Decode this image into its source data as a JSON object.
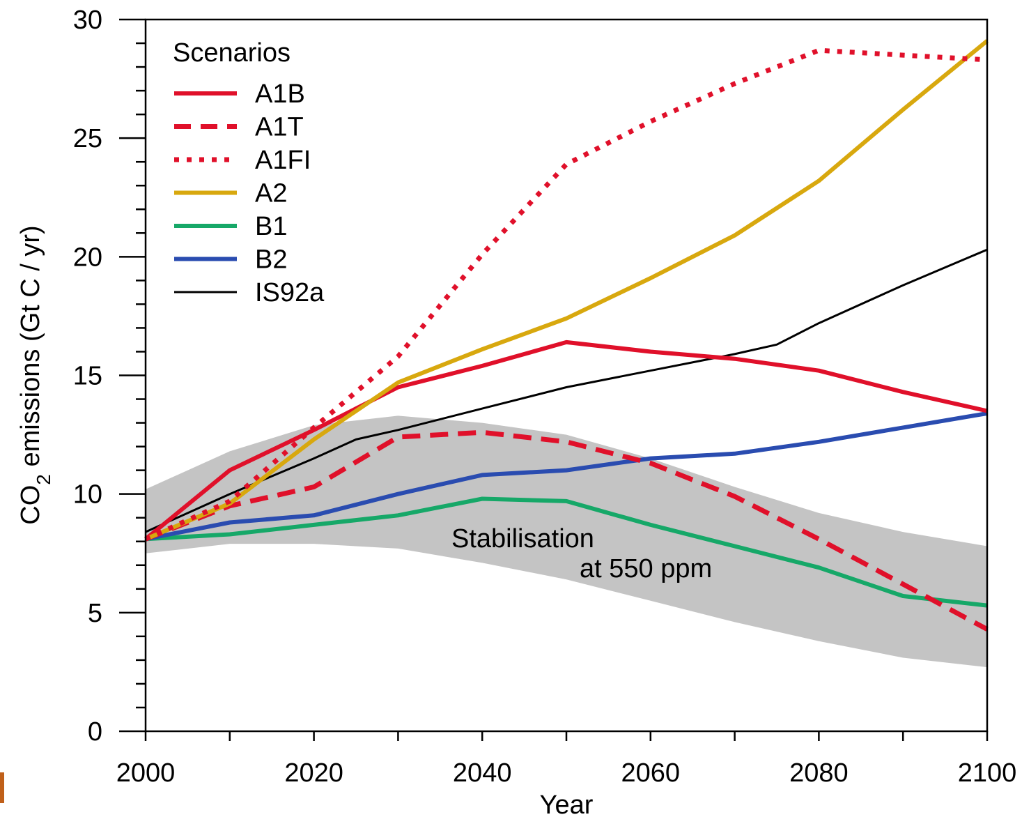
{
  "chart_data": {
    "type": "line",
    "xlabel": "Year",
    "ylabel": "CO₂ emissions (Gt C / yr)",
    "xlim": [
      2000,
      2100
    ],
    "ylim": [
      0,
      30
    ],
    "x_ticks": [
      2000,
      2020,
      2040,
      2060,
      2080,
      2100
    ],
    "y_ticks": [
      0,
      5,
      10,
      15,
      20,
      25,
      30
    ],
    "grid": false,
    "legend": {
      "title": "Scenarios",
      "placement": "top-left"
    },
    "band": {
      "label_line1": "Stabilisation",
      "label_line2": "at 550 ppm",
      "color": "#c4c4c4",
      "x": [
        2000,
        2010,
        2020,
        2030,
        2040,
        2050,
        2060,
        2070,
        2080,
        2090,
        2100
      ],
      "upper": [
        10.2,
        11.8,
        12.9,
        13.3,
        13.0,
        12.5,
        11.5,
        10.3,
        9.2,
        8.4,
        7.8
      ],
      "lower": [
        7.5,
        7.9,
        7.9,
        7.7,
        7.1,
        6.4,
        5.5,
        4.6,
        3.8,
        3.1,
        2.7
      ]
    },
    "series": [
      {
        "name": "A1B",
        "color": "#e0102a",
        "dash": "solid",
        "width": 6,
        "x": [
          2000,
          2010,
          2020,
          2025,
          2030,
          2040,
          2050,
          2060,
          2070,
          2080,
          2090,
          2100
        ],
        "y": [
          8.1,
          11.0,
          12.7,
          13.6,
          14.5,
          15.4,
          16.4,
          16.0,
          15.7,
          15.2,
          14.3,
          13.5
        ]
      },
      {
        "name": "A1T",
        "color": "#e0102a",
        "dash": "dashed",
        "width": 7,
        "x": [
          2000,
          2010,
          2020,
          2030,
          2040,
          2050,
          2060,
          2070,
          2080,
          2090,
          2100
        ],
        "y": [
          8.1,
          9.5,
          10.3,
          12.4,
          12.6,
          12.2,
          11.3,
          9.9,
          8.1,
          6.2,
          4.3
        ]
      },
      {
        "name": "A1FI",
        "color": "#e0102a",
        "dash": "dotted",
        "width": 7,
        "x": [
          2000,
          2010,
          2020,
          2030,
          2040,
          2050,
          2060,
          2070,
          2080,
          2090,
          2100
        ],
        "y": [
          8.1,
          9.7,
          12.8,
          15.8,
          20.1,
          23.9,
          25.7,
          27.3,
          28.7,
          28.5,
          28.3
        ]
      },
      {
        "name": "A2",
        "color": "#d8a80e",
        "dash": "solid",
        "width": 6,
        "x": [
          2000,
          2010,
          2020,
          2030,
          2040,
          2050,
          2060,
          2070,
          2080,
          2090,
          2100
        ],
        "y": [
          8.1,
          9.6,
          12.3,
          14.7,
          16.1,
          17.4,
          19.1,
          20.9,
          23.2,
          26.2,
          29.1
        ]
      },
      {
        "name": "B1",
        "color": "#16a868",
        "dash": "solid",
        "width": 6,
        "x": [
          2000,
          2010,
          2020,
          2030,
          2040,
          2050,
          2060,
          2070,
          2080,
          2090,
          2100
        ],
        "y": [
          8.1,
          8.3,
          8.7,
          9.1,
          9.8,
          9.7,
          8.7,
          7.8,
          6.9,
          5.7,
          5.3
        ]
      },
      {
        "name": "B2",
        "color": "#2a4cb0",
        "dash": "solid",
        "width": 6,
        "x": [
          2000,
          2010,
          2020,
          2030,
          2040,
          2050,
          2060,
          2070,
          2080,
          2090,
          2100
        ],
        "y": [
          8.1,
          8.8,
          9.1,
          10.0,
          10.8,
          11.0,
          11.5,
          11.7,
          12.2,
          12.8,
          13.4
        ]
      },
      {
        "name": "IS92a",
        "color": "#000000",
        "dash": "solid",
        "width": 3,
        "x": [
          2000,
          2010,
          2020,
          2025,
          2030,
          2040,
          2050,
          2060,
          2070,
          2075,
          2080,
          2090,
          2100
        ],
        "y": [
          8.4,
          10.0,
          11.5,
          12.3,
          12.7,
          13.6,
          14.5,
          15.2,
          15.9,
          16.3,
          17.2,
          18.8,
          20.3
        ]
      }
    ]
  }
}
